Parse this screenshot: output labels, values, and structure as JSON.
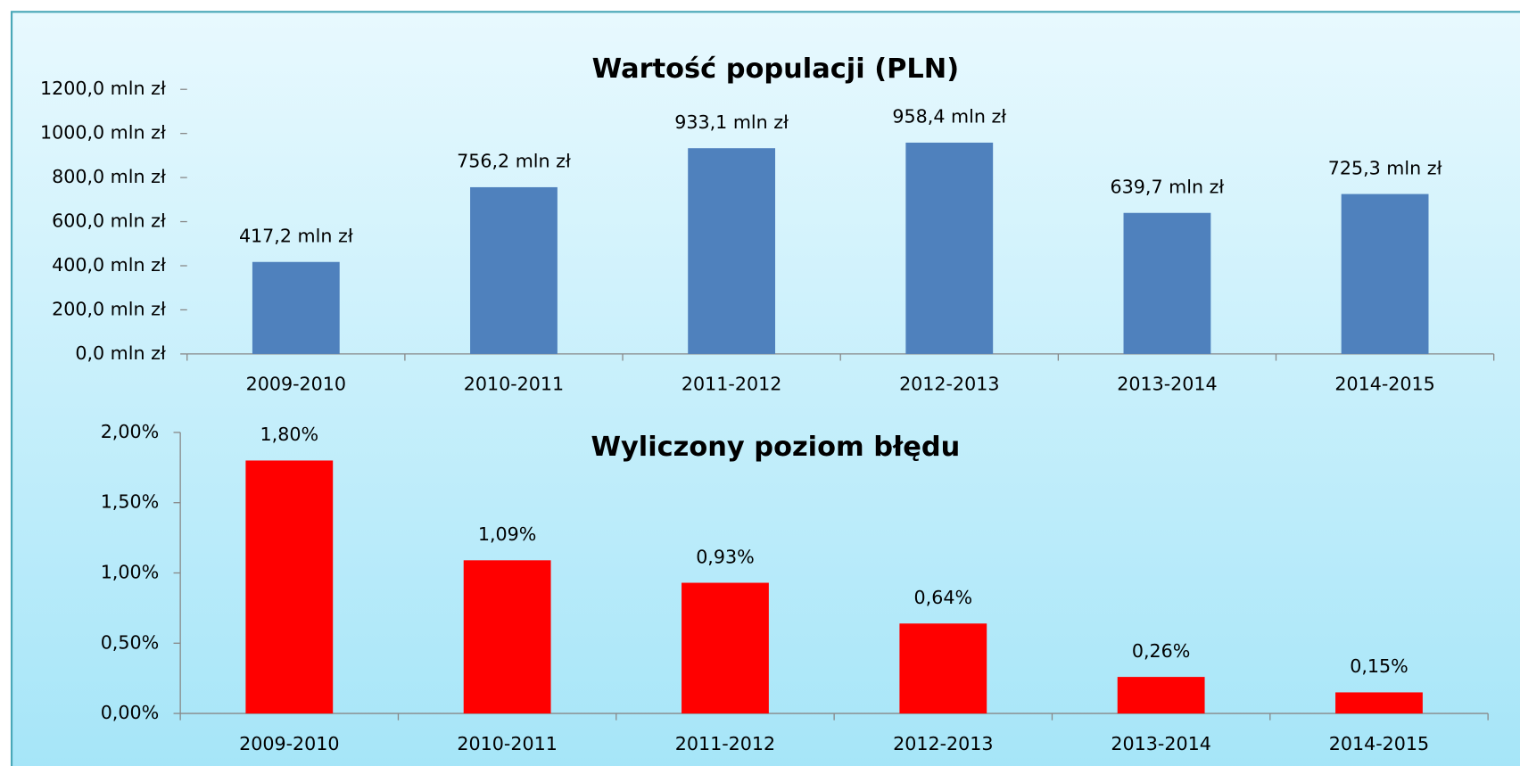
{
  "chart_data": [
    {
      "type": "bar",
      "title": "Wartość populacji (PLN)",
      "categories": [
        "2009-2010",
        "2010-2011",
        "2011-2012",
        "2012-2013",
        "2013-2014",
        "2014-2015"
      ],
      "values": [
        417.2,
        756.2,
        933.1,
        958.4,
        639.7,
        725.3
      ],
      "value_labels": [
        "417,2 mln zł",
        "756,2 mln zł",
        "933,1 mln zł",
        "958,4 mln zł",
        "639,7 mln zł",
        "725,3 mln zł"
      ],
      "color": "#4f81bd",
      "ylim": [
        0,
        1200
      ],
      "yticks": [
        {
          "value": 0,
          "label": "0,0 mln zł"
        },
        {
          "value": 200,
          "label": "200,0 mln zł"
        },
        {
          "value": 400,
          "label": "400,0 mln zł"
        },
        {
          "value": 600,
          "label": "600,0 mln zł"
        },
        {
          "value": 800,
          "label": "800,0 mln zł"
        },
        {
          "value": 1000,
          "label": "1000,0 mln zł"
        },
        {
          "value": 1200,
          "label": "1200,0 mln zł"
        }
      ],
      "y_axis_line": false
    },
    {
      "type": "bar",
      "title": "Wyliczony poziom błędu",
      "categories": [
        "2009-2010",
        "2010-2011",
        "2011-2012",
        "2012-2013",
        "2013-2014",
        "2014-2015"
      ],
      "values": [
        1.8,
        1.09,
        0.93,
        0.64,
        0.26,
        0.15
      ],
      "value_labels": [
        "1,80%",
        "1,09%",
        "0,93%",
        "0,64%",
        "0,26%",
        "0,15%"
      ],
      "color": "#ff0000",
      "ylim": [
        0,
        2
      ],
      "yticks": [
        {
          "value": 0,
          "label": "0,00%"
        },
        {
          "value": 0.5,
          "label": "0,50%"
        },
        {
          "value": 1,
          "label": "1,00%"
        },
        {
          "value": 1.5,
          "label": "1,50%"
        },
        {
          "value": 2,
          "label": "2,00%"
        }
      ],
      "y_axis_line": true
    }
  ]
}
